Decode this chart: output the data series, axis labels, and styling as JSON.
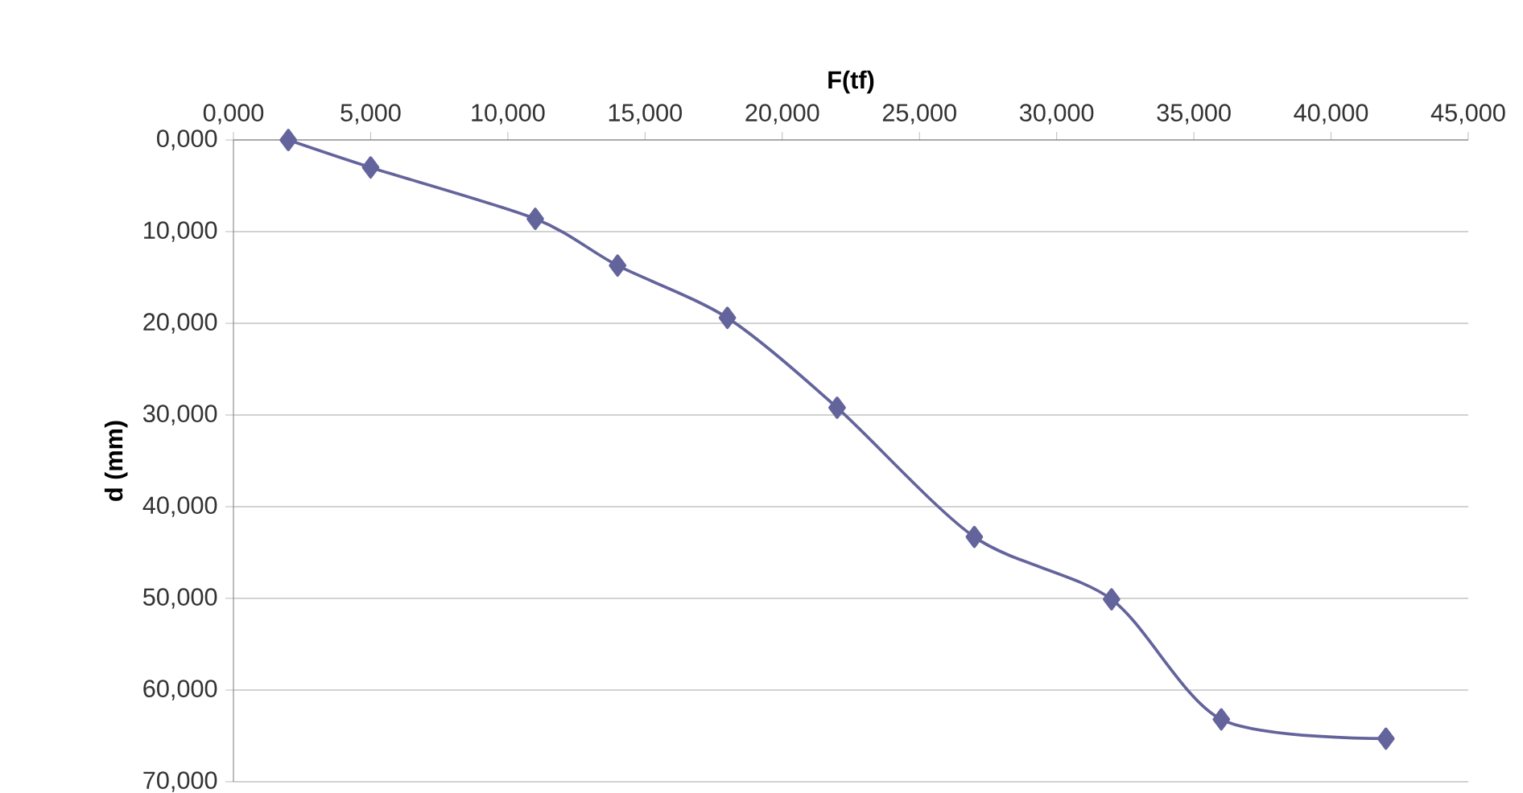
{
  "chart_data": {
    "type": "line",
    "xlabel": "F(tf)",
    "ylabel": "d (mm)",
    "x": [
      2.0,
      5.0,
      11.0,
      14.0,
      18.0,
      22.0,
      27.0,
      32.0,
      36.0,
      42.0
    ],
    "series": [
      {
        "color": "#64649c",
        "values": [
          0.0,
          3.0,
          8.6,
          13.7,
          19.4,
          29.2,
          43.3,
          50.1,
          63.2,
          65.3
        ]
      }
    ],
    "xlim": [
      0,
      45
    ],
    "ylim": [
      70,
      0
    ],
    "xticks": [
      {
        "value": 0,
        "label": "0,000"
      },
      {
        "value": 5,
        "label": "5,000"
      },
      {
        "value": 10,
        "label": "10,000"
      },
      {
        "value": 15,
        "label": "15,000"
      },
      {
        "value": 20,
        "label": "20,000"
      },
      {
        "value": 25,
        "label": "25,000"
      },
      {
        "value": 30,
        "label": "30,000"
      },
      {
        "value": 35,
        "label": "35,000"
      },
      {
        "value": 40,
        "label": "40,000"
      },
      {
        "value": 45,
        "label": "45,000"
      }
    ],
    "yticks": [
      {
        "value": 0,
        "label": "0,000"
      },
      {
        "value": 10,
        "label": "10,000"
      },
      {
        "value": 20,
        "label": "20,000"
      },
      {
        "value": 30,
        "label": "30,000"
      },
      {
        "value": 40,
        "label": "40,000"
      },
      {
        "value": 50,
        "label": "50,000"
      },
      {
        "value": 60,
        "label": "60,000"
      },
      {
        "value": 70,
        "label": "70,000"
      }
    ],
    "grid": "y",
    "marker": "diamond",
    "line_style": "solid"
  }
}
